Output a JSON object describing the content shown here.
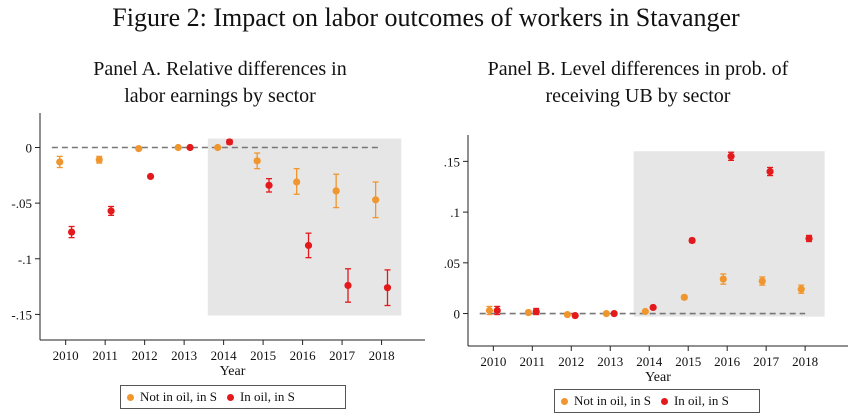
{
  "figure_title": "Figure 2: Impact on labor outcomes of workers in Stavanger",
  "colors": {
    "not_oil": "#F0962E",
    "in_oil": "#E4191C",
    "shade": "#E6E6E6",
    "dash": "#777777"
  },
  "chart_data": [
    {
      "type": "scatter",
      "panel": "A",
      "title_line1": "Panel A. Relative differences in",
      "title_line2": "labor earnings by sector",
      "xlabel": "Year",
      "ylabel": "",
      "categories": [
        "2010",
        "2011",
        "2012",
        "2013",
        "2014",
        "2015",
        "2016",
        "2017",
        "2018"
      ],
      "x_range": [
        2009.35,
        2019.1
      ],
      "ylim": [
        -0.173,
        0.031
      ],
      "yticks": [
        0,
        -0.05,
        -0.1,
        -0.15
      ],
      "ytick_labels": [
        "0",
        "-.05",
        "-.1",
        "-.15"
      ],
      "shaded_region": {
        "x": [
          2013.6,
          2018.5
        ],
        "y": [
          -0.151,
          0.008
        ]
      },
      "reference_line": {
        "y": 0,
        "x": [
          2009.65,
          2018.0
        ]
      },
      "series": [
        {
          "name": "Not in oil, in S",
          "x_offset": -0.15,
          "values": [
            -0.013,
            -0.011,
            -0.001,
            0.0,
            0.0,
            -0.012,
            -0.031,
            -0.039,
            -0.047
          ],
          "ci_low": [
            -0.018,
            -0.014,
            -0.002,
            -0.001,
            -0.001,
            -0.019,
            -0.042,
            -0.054,
            -0.063
          ],
          "ci_high": [
            -0.008,
            -0.008,
            0.0,
            0.001,
            0.001,
            -0.005,
            -0.019,
            -0.024,
            -0.031
          ]
        },
        {
          "name": "In oil, in S",
          "x_offset": 0.15,
          "values": [
            -0.076,
            -0.057,
            -0.026,
            0.0,
            0.005,
            -0.034,
            -0.088,
            -0.124,
            -0.126
          ],
          "ci_low": [
            -0.081,
            -0.061,
            -0.027,
            -0.001,
            0.003,
            -0.04,
            -0.099,
            -0.139,
            -0.142
          ],
          "ci_high": [
            -0.071,
            -0.053,
            -0.025,
            0.001,
            0.007,
            -0.028,
            -0.077,
            -0.109,
            -0.11
          ]
        }
      ],
      "legend": [
        "Not in oil, in S",
        "In oil, in S"
      ]
    },
    {
      "type": "scatter",
      "panel": "B",
      "title_line1": "Panel B. Level differences in prob. of",
      "title_line2": "receiving UB by sector",
      "xlabel": "Year",
      "ylabel": "",
      "categories": [
        "2010",
        "2011",
        "2012",
        "2013",
        "2014",
        "2015",
        "2016",
        "2017",
        "2018"
      ],
      "x_range": [
        2009.35,
        2019.1
      ],
      "ylim": [
        -0.032,
        0.176
      ],
      "yticks": [
        0.15,
        0.1,
        0.05,
        0
      ],
      "ytick_labels": [
        ".15",
        ".1",
        ".05",
        "0"
      ],
      "shaded_region": {
        "x": [
          2013.6,
          2018.5
        ],
        "y": [
          -0.003,
          0.16
        ]
      },
      "reference_line": {
        "y": 0,
        "x": [
          2009.65,
          2018.0
        ]
      },
      "series": [
        {
          "name": "Not in oil, in S",
          "x_offset": -0.1,
          "values": [
            0.003,
            0.001,
            -0.001,
            0.0,
            0.002,
            0.016,
            0.034,
            0.032,
            0.024
          ],
          "ci_low": [
            -0.001,
            -0.001,
            -0.002,
            -0.001,
            0.001,
            0.014,
            0.029,
            0.028,
            0.02
          ],
          "ci_high": [
            0.007,
            0.003,
            0.0,
            0.001,
            0.003,
            0.018,
            0.039,
            0.036,
            0.028
          ]
        },
        {
          "name": "In oil, in S",
          "x_offset": 0.1,
          "values": [
            0.003,
            0.002,
            -0.002,
            0.0,
            0.006,
            0.072,
            0.155,
            0.14,
            0.074
          ],
          "ci_low": [
            -0.001,
            -0.001,
            -0.003,
            -0.001,
            0.005,
            0.07,
            0.151,
            0.136,
            0.071
          ],
          "ci_high": [
            0.007,
            0.005,
            -0.001,
            0.001,
            0.007,
            0.074,
            0.159,
            0.144,
            0.077
          ]
        }
      ],
      "legend": [
        "Not in oil, in S",
        "In oil, in S"
      ]
    }
  ]
}
